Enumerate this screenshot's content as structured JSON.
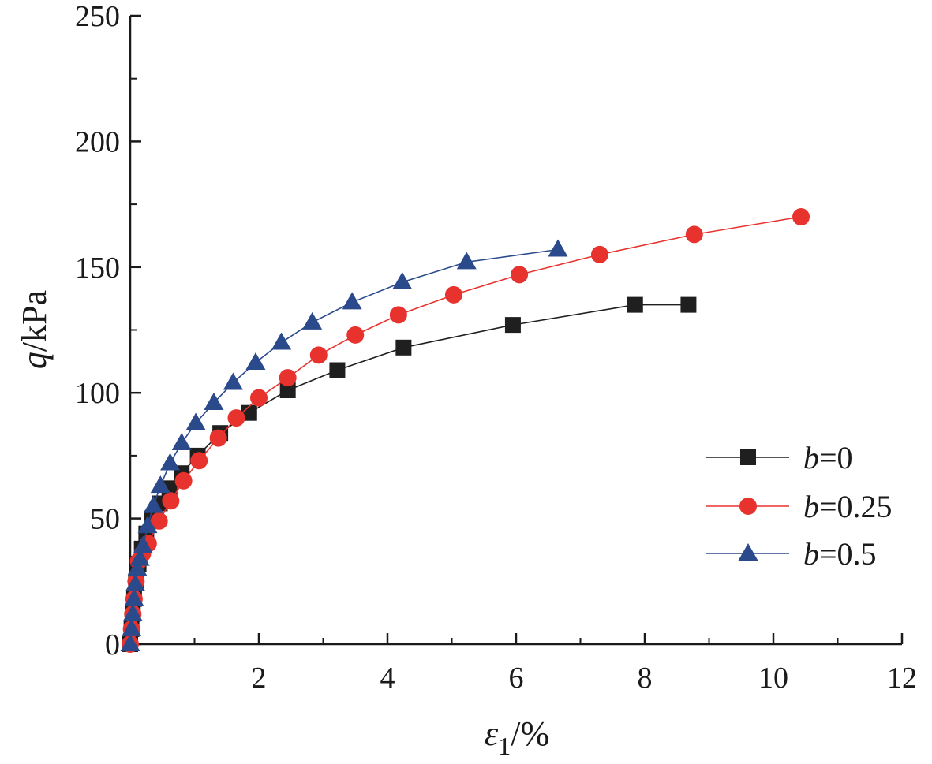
{
  "chart_data": {
    "type": "line",
    "title": "",
    "xlabel": {
      "symbol": "ε",
      "sub": "1",
      "unit": "/%"
    },
    "ylabel": {
      "symbol": "q",
      "unit": "/kPa"
    },
    "xlim": [
      0,
      12
    ],
    "ylim": [
      0,
      250
    ],
    "xticks": [
      2,
      4,
      6,
      8,
      10,
      12
    ],
    "xtick_labels": [
      "2",
      "4",
      "6",
      "8",
      "10",
      "12"
    ],
    "yticks": [
      0,
      50,
      100,
      150,
      200,
      250
    ],
    "ytick_labels": [
      "0",
      "50",
      "100",
      "150",
      "200",
      "250"
    ],
    "grid": false,
    "legend_position": "right",
    "series": [
      {
        "name_var": "b",
        "name_value": "=0",
        "color": "#1f1f1f",
        "marker": "square",
        "x": [
          0.0,
          0.02,
          0.04,
          0.06,
          0.09,
          0.13,
          0.18,
          0.25,
          0.34,
          0.46,
          0.61,
          0.8,
          1.05,
          1.4,
          1.85,
          2.45,
          3.22,
          4.25,
          5.95,
          7.85,
          8.68
        ],
        "y": [
          0,
          6,
          12,
          18,
          25,
          32,
          38,
          44,
          50,
          56,
          62,
          68,
          75,
          84,
          92,
          101,
          109,
          118,
          127,
          135,
          135
        ]
      },
      {
        "name_var": "b",
        "name_value": "=0.25",
        "color": "#e8322e",
        "marker": "circle",
        "x": [
          0.0,
          0.02,
          0.04,
          0.06,
          0.09,
          0.13,
          0.19,
          0.28,
          0.45,
          0.63,
          0.83,
          1.07,
          1.37,
          1.65,
          2.0,
          2.45,
          2.93,
          3.5,
          4.17,
          5.03,
          6.05,
          7.3,
          8.77,
          10.43
        ],
        "y": [
          0,
          6,
          12,
          18,
          25,
          33,
          36,
          40,
          49,
          57,
          65,
          73,
          82,
          90,
          98,
          106,
          115,
          123,
          131,
          139,
          147,
          155,
          163,
          170
        ]
      },
      {
        "name_var": "b",
        "name_value": "=0.5",
        "color": "#2b4a8c",
        "marker": "triangle",
        "x": [
          0.0,
          0.02,
          0.04,
          0.06,
          0.08,
          0.11,
          0.15,
          0.2,
          0.27,
          0.36,
          0.47,
          0.62,
          0.8,
          1.02,
          1.3,
          1.6,
          1.95,
          2.35,
          2.83,
          3.45,
          4.23,
          5.23,
          6.65
        ],
        "y": [
          0,
          6,
          12,
          18,
          24,
          30,
          34,
          39,
          47,
          55,
          63,
          72,
          80,
          88,
          96,
          104,
          112,
          120,
          128,
          136,
          144,
          152,
          157
        ]
      }
    ]
  }
}
